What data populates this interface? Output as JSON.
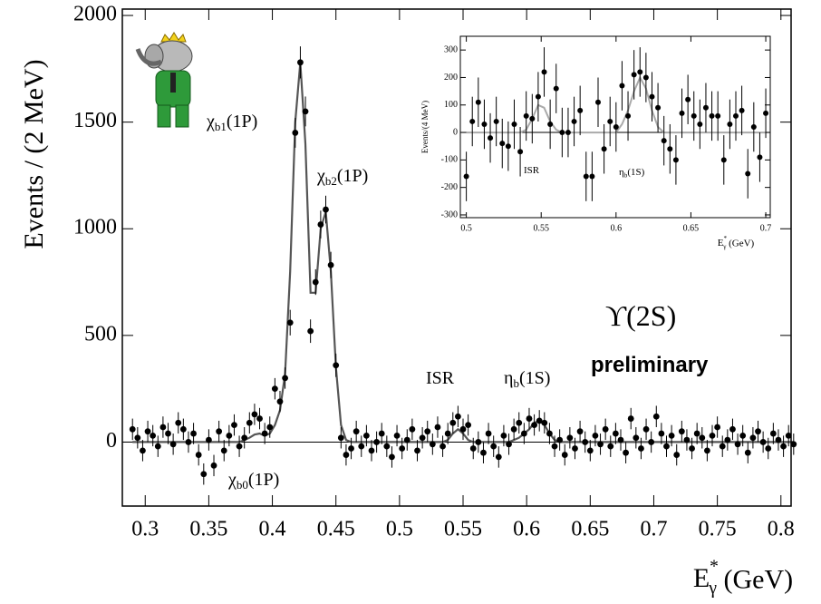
{
  "chart_data": [
    {
      "type": "scatter",
      "ylabel": "Events / (2 MeV)",
      "xlabel": {
        "text": "E",
        "sup": "*",
        "sub": "γ",
        "tail": " (GeV)"
      },
      "xlim": [
        0.282,
        0.808
      ],
      "ylim": [
        -300,
        2030
      ],
      "xticks": [
        0.3,
        0.35,
        0.4,
        0.45,
        0.5,
        0.55,
        0.6,
        0.65,
        0.7,
        0.75,
        0.8
      ],
      "yticks": [
        0,
        500,
        1000,
        1500,
        2000
      ],
      "point_color": "#000000",
      "fit_color": "#555555",
      "x": [
        0.29,
        0.294,
        0.298,
        0.302,
        0.306,
        0.31,
        0.314,
        0.318,
        0.322,
        0.326,
        0.33,
        0.334,
        0.338,
        0.342,
        0.346,
        0.35,
        0.354,
        0.358,
        0.362,
        0.366,
        0.37,
        0.374,
        0.378,
        0.382,
        0.386,
        0.39,
        0.394,
        0.398,
        0.402,
        0.406,
        0.41,
        0.414,
        0.418,
        0.422,
        0.426,
        0.43,
        0.434,
        0.438,
        0.442,
        0.446,
        0.45,
        0.454,
        0.458,
        0.462,
        0.466,
        0.47,
        0.474,
        0.478,
        0.482,
        0.486,
        0.49,
        0.494,
        0.498,
        0.502,
        0.506,
        0.51,
        0.514,
        0.518,
        0.522,
        0.526,
        0.53,
        0.534,
        0.538,
        0.542,
        0.546,
        0.55,
        0.554,
        0.558,
        0.562,
        0.566,
        0.57,
        0.574,
        0.578,
        0.582,
        0.586,
        0.59,
        0.594,
        0.598,
        0.602,
        0.606,
        0.61,
        0.614,
        0.618,
        0.622,
        0.626,
        0.63,
        0.634,
        0.638,
        0.642,
        0.646,
        0.65,
        0.654,
        0.658,
        0.662,
        0.666,
        0.67,
        0.674,
        0.678,
        0.682,
        0.686,
        0.69,
        0.694,
        0.698,
        0.702,
        0.706,
        0.71,
        0.714,
        0.718,
        0.722,
        0.726,
        0.73,
        0.734,
        0.738,
        0.742,
        0.746,
        0.75,
        0.754,
        0.758,
        0.762,
        0.766,
        0.77,
        0.774,
        0.778,
        0.782,
        0.786,
        0.79,
        0.794,
        0.798,
        0.802,
        0.806,
        0.81
      ],
      "values": [
        60,
        20,
        -40,
        50,
        30,
        -20,
        70,
        40,
        -10,
        90,
        60,
        0,
        40,
        -60,
        -150,
        10,
        -110,
        50,
        -40,
        30,
        80,
        -20,
        20,
        90,
        130,
        110,
        40,
        70,
        250,
        190,
        300,
        560,
        1450,
        1780,
        1550,
        520,
        750,
        1020,
        1090,
        830,
        360,
        20,
        -60,
        -30,
        50,
        -20,
        30,
        -40,
        0,
        40,
        -20,
        -70,
        30,
        -30,
        10,
        60,
        -40,
        20,
        50,
        -10,
        70,
        -20,
        40,
        90,
        120,
        60,
        80,
        -30,
        0,
        -50,
        40,
        -20,
        -70,
        30,
        -10,
        60,
        90,
        40,
        110,
        80,
        100,
        90,
        40,
        -20,
        10,
        -60,
        20,
        -30,
        50,
        0,
        -40,
        30,
        -10,
        60,
        -20,
        40,
        10,
        -50,
        110,
        20,
        -30,
        60,
        0,
        120,
        40,
        -20,
        30,
        -60,
        50,
        10,
        -30,
        40,
        20,
        -40,
        30,
        70,
        -20,
        10,
        60,
        -10,
        30,
        -50,
        20,
        50,
        0,
        -30,
        40,
        10,
        -20,
        30,
        -10
      ],
      "errors": [
        50,
        50,
        50,
        50,
        50,
        50,
        50,
        50,
        50,
        50,
        50,
        50,
        50,
        50,
        50,
        50,
        50,
        50,
        50,
        50,
        50,
        50,
        50,
        50,
        50,
        50,
        50,
        50,
        50,
        50,
        50,
        60,
        70,
        75,
        70,
        55,
        60,
        65,
        65,
        62,
        55,
        50,
        50,
        50,
        50,
        50,
        50,
        50,
        50,
        50,
        50,
        50,
        50,
        50,
        50,
        50,
        50,
        50,
        50,
        50,
        50,
        50,
        50,
        50,
        50,
        50,
        50,
        50,
        50,
        50,
        50,
        50,
        50,
        50,
        50,
        50,
        50,
        50,
        50,
        50,
        50,
        50,
        50,
        50,
        50,
        50,
        50,
        50,
        50,
        50,
        50,
        50,
        50,
        50,
        50,
        50,
        50,
        50,
        50,
        50,
        50,
        50,
        50,
        50,
        50,
        50,
        50,
        50,
        50,
        50,
        50,
        50,
        50,
        50,
        50,
        50,
        50,
        50,
        50,
        50,
        50,
        50,
        50,
        50,
        50,
        50,
        50,
        50,
        50,
        50,
        50
      ],
      "fit_values": [
        0,
        0,
        0,
        0,
        0,
        0,
        0,
        0,
        0,
        0,
        0,
        0,
        0,
        0,
        0,
        0,
        0,
        0,
        0,
        0,
        0,
        0,
        10,
        20,
        35,
        40,
        30,
        40,
        80,
        150,
        320,
        800,
        1500,
        1780,
        1400,
        700,
        700,
        1000,
        1080,
        800,
        350,
        80,
        10,
        0,
        0,
        0,
        0,
        0,
        0,
        0,
        0,
        0,
        0,
        0,
        0,
        0,
        0,
        0,
        0,
        0,
        0,
        0,
        10,
        40,
        60,
        40,
        10,
        0,
        0,
        0,
        0,
        0,
        0,
        0,
        0,
        10,
        20,
        40,
        60,
        90,
        100,
        80,
        40,
        10,
        0,
        0,
        0,
        0,
        0,
        0,
        0,
        0,
        0,
        0,
        0,
        0,
        0,
        0,
        0,
        0,
        0,
        0,
        0,
        0,
        0,
        0,
        0,
        0,
        0,
        0,
        0,
        0,
        0,
        0,
        0,
        0,
        0,
        0,
        0,
        0,
        0,
        0,
        0,
        0,
        0,
        0,
        0,
        0,
        0,
        0,
        0,
        0,
        0
      ],
      "annotations": [
        {
          "text": "χ",
          "sub": "b1",
          "tail": "(1P)"
        },
        {
          "text": "χ",
          "sub": "b2",
          "tail": "(1P)"
        },
        {
          "text": "χ",
          "sub": "b0",
          "tail": "(1P)"
        },
        {
          "text": "ISR"
        },
        {
          "text": "η",
          "sub": "b",
          "tail": "(1S)"
        },
        {
          "text": "ϒ(2S)",
          "color": "#e8141c"
        },
        {
          "text": "preliminary"
        }
      ]
    },
    {
      "type": "scatter",
      "ylabel": "Events/(4 MeV)",
      "xlabel": {
        "text": "E",
        "sup": "*",
        "sub": "γ",
        "tail": " (GeV)"
      },
      "xlim": [
        0.496,
        0.703
      ],
      "ylim": [
        -310,
        350
      ],
      "xticks": [
        0.5,
        0.55,
        0.6,
        0.65,
        0.7
      ],
      "yticks": [
        -300,
        -200,
        -100,
        0,
        100,
        200,
        300
      ],
      "point_color": "#000000",
      "fit_color": "#aaaaaa",
      "x": [
        0.5,
        0.504,
        0.508,
        0.512,
        0.516,
        0.52,
        0.524,
        0.528,
        0.532,
        0.536,
        0.54,
        0.544,
        0.548,
        0.552,
        0.556,
        0.56,
        0.564,
        0.568,
        0.572,
        0.576,
        0.58,
        0.584,
        0.588,
        0.592,
        0.596,
        0.6,
        0.604,
        0.608,
        0.612,
        0.616,
        0.62,
        0.624,
        0.628,
        0.632,
        0.636,
        0.64,
        0.644,
        0.648,
        0.652,
        0.656,
        0.66,
        0.664,
        0.668,
        0.672,
        0.676,
        0.68,
        0.684,
        0.688,
        0.692,
        0.696,
        0.7
      ],
      "values": [
        -160,
        40,
        110,
        30,
        -20,
        40,
        -40,
        -50,
        30,
        -70,
        60,
        50,
        130,
        220,
        30,
        160,
        0,
        0,
        40,
        80,
        -160,
        -160,
        110,
        -60,
        40,
        20,
        170,
        60,
        210,
        220,
        200,
        130,
        90,
        -30,
        -60,
        -100,
        70,
        120,
        60,
        30,
        90,
        60,
        60,
        -100,
        30,
        60,
        80,
        -150,
        20,
        -90,
        70
      ],
      "errors": [
        90,
        90,
        90,
        90,
        90,
        90,
        90,
        90,
        90,
        90,
        90,
        90,
        90,
        90,
        90,
        90,
        90,
        90,
        90,
        90,
        90,
        90,
        90,
        90,
        90,
        90,
        90,
        90,
        90,
        90,
        90,
        90,
        90,
        90,
        90,
        90,
        90,
        90,
        90,
        90,
        90,
        90,
        90,
        90,
        90,
        90,
        90,
        90,
        90,
        90,
        90
      ],
      "fit_values": [
        0,
        0,
        0,
        0,
        0,
        0,
        0,
        0,
        0,
        0,
        10,
        50,
        100,
        90,
        40,
        10,
        0,
        0,
        0,
        0,
        0,
        0,
        0,
        0,
        0,
        0,
        30,
        80,
        150,
        200,
        160,
        80,
        20,
        0,
        0,
        0,
        0,
        0,
        0,
        0,
        0,
        0,
        0,
        0,
        0,
        0,
        0,
        0,
        0,
        0,
        0
      ],
      "annotations": [
        {
          "text": "ISR"
        },
        {
          "text": "η",
          "sub": "b",
          "tail": "(1S)"
        }
      ]
    }
  ]
}
